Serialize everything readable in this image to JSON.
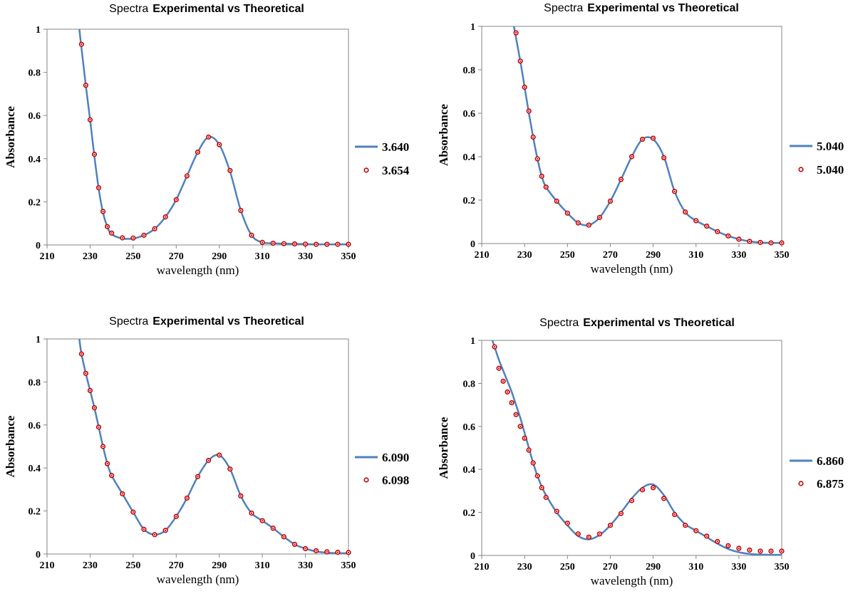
{
  "colors": {
    "line": "#4F81BD",
    "marker_edge": "#C00000",
    "marker_fill": "#C00000"
  },
  "chart_data": [
    {
      "type": "line",
      "title_prefix": "Spectra",
      "title_bold": "Experimental vs Theoretical",
      "xlabel": "wavelength (nm)",
      "ylabel": "Absorbance",
      "xlim": [
        210,
        350
      ],
      "ylim": [
        0,
        1
      ],
      "xticks": [
        "210",
        "230",
        "250",
        "270",
        "290",
        "310",
        "330",
        "350"
      ],
      "yticks": [
        "0",
        "0.2",
        "0.4",
        "0.6",
        "0.8",
        "1"
      ],
      "legend_position": "right",
      "series": [
        {
          "name": "3.640",
          "kind": "line",
          "x": [
            225,
            228,
            230,
            232,
            234,
            236,
            238,
            240,
            245,
            250,
            255,
            260,
            265,
            270,
            275,
            280,
            285,
            290,
            295,
            300,
            305,
            310,
            315,
            320,
            325,
            330,
            335,
            340,
            345,
            350
          ],
          "y": [
            1.0,
            0.74,
            0.58,
            0.41,
            0.26,
            0.15,
            0.085,
            0.05,
            0.03,
            0.03,
            0.045,
            0.075,
            0.13,
            0.21,
            0.32,
            0.43,
            0.5,
            0.465,
            0.34,
            0.16,
            0.045,
            0.012,
            0.008,
            0.006,
            0.005,
            0.004,
            0.003,
            0.003,
            0.003,
            0.003
          ]
        },
        {
          "name": "3.654",
          "kind": "scatter",
          "x": [
            226,
            228,
            230,
            232,
            234,
            236,
            238,
            240,
            245,
            250,
            255,
            260,
            265,
            270,
            275,
            280,
            285,
            290,
            295,
            300,
            305,
            310,
            315,
            320,
            325,
            330,
            335,
            340,
            345,
            350
          ],
          "y": [
            0.93,
            0.74,
            0.58,
            0.42,
            0.265,
            0.155,
            0.085,
            0.055,
            0.033,
            0.032,
            0.045,
            0.075,
            0.13,
            0.21,
            0.32,
            0.43,
            0.5,
            0.465,
            0.345,
            0.16,
            0.045,
            0.012,
            0.008,
            0.006,
            0.005,
            0.004,
            0.003,
            0.003,
            0.003,
            0.003
          ]
        }
      ]
    },
    {
      "type": "line",
      "title_prefix": "Spectra",
      "title_bold": "Experimental vs Theoretical",
      "xlabel": "wavelength (nm)",
      "ylabel": "Absorbance",
      "xlim": [
        210,
        350
      ],
      "ylim": [
        0,
        1
      ],
      "xticks": [
        "210",
        "230",
        "250",
        "270",
        "290",
        "310",
        "330",
        "350"
      ],
      "yticks": [
        "0",
        "0.2",
        "0.4",
        "0.6",
        "0.8",
        "1"
      ],
      "legend_position": "right",
      "series": [
        {
          "name": "5.040",
          "kind": "line",
          "x": [
            225,
            228,
            230,
            232,
            234,
            236,
            238,
            240,
            245,
            250,
            255,
            260,
            265,
            270,
            275,
            280,
            285,
            290,
            295,
            300,
            305,
            310,
            315,
            320,
            325,
            330,
            335,
            340,
            345,
            350
          ],
          "y": [
            1.0,
            0.84,
            0.72,
            0.6,
            0.49,
            0.39,
            0.31,
            0.26,
            0.195,
            0.14,
            0.095,
            0.085,
            0.12,
            0.195,
            0.295,
            0.4,
            0.48,
            0.48,
            0.4,
            0.24,
            0.145,
            0.105,
            0.08,
            0.055,
            0.035,
            0.02,
            0.01,
            0.005,
            0.003,
            0.003
          ]
        },
        {
          "name": "5.040",
          "kind": "scatter",
          "x": [
            226,
            228,
            230,
            232,
            234,
            236,
            238,
            240,
            245,
            250,
            255,
            260,
            265,
            270,
            275,
            280,
            285,
            290,
            295,
            300,
            305,
            310,
            315,
            320,
            325,
            330,
            335,
            340,
            345,
            350
          ],
          "y": [
            0.97,
            0.84,
            0.72,
            0.61,
            0.49,
            0.39,
            0.31,
            0.26,
            0.195,
            0.14,
            0.095,
            0.085,
            0.12,
            0.195,
            0.295,
            0.4,
            0.48,
            0.485,
            0.395,
            0.24,
            0.145,
            0.105,
            0.08,
            0.055,
            0.035,
            0.02,
            0.01,
            0.005,
            0.003,
            0.003
          ]
        }
      ]
    },
    {
      "type": "line",
      "title_prefix": "Spectra",
      "title_bold": "Experimental vs Theoretical",
      "xlabel": "wavelength (nm)",
      "ylabel": "Absorbance",
      "xlim": [
        210,
        350
      ],
      "ylim": [
        0,
        1
      ],
      "xticks": [
        "210",
        "230",
        "250",
        "270",
        "290",
        "310",
        "330",
        "350"
      ],
      "yticks": [
        "0",
        "0.2",
        "0.4",
        "0.6",
        "0.8",
        "1"
      ],
      "legend_position": "right",
      "series": [
        {
          "name": "6.090",
          "kind": "line",
          "x": [
            225,
            226,
            228,
            230,
            232,
            234,
            236,
            238,
            240,
            245,
            250,
            255,
            260,
            265,
            270,
            275,
            280,
            285,
            290,
            295,
            300,
            305,
            310,
            315,
            320,
            325,
            330,
            335,
            340,
            345,
            350
          ],
          "y": [
            1.0,
            0.93,
            0.84,
            0.76,
            0.68,
            0.59,
            0.5,
            0.42,
            0.365,
            0.28,
            0.195,
            0.115,
            0.09,
            0.11,
            0.175,
            0.26,
            0.36,
            0.435,
            0.46,
            0.395,
            0.27,
            0.19,
            0.155,
            0.12,
            0.08,
            0.045,
            0.025,
            0.012,
            0.006,
            0.004,
            0.003
          ]
        },
        {
          "name": "6.098",
          "kind": "scatter",
          "x": [
            226,
            228,
            230,
            232,
            234,
            236,
            238,
            240,
            245,
            250,
            255,
            260,
            265,
            270,
            275,
            280,
            285,
            290,
            295,
            300,
            305,
            310,
            315,
            320,
            325,
            330,
            335,
            340,
            345,
            350
          ],
          "y": [
            0.93,
            0.84,
            0.76,
            0.68,
            0.59,
            0.5,
            0.42,
            0.365,
            0.28,
            0.195,
            0.115,
            0.09,
            0.11,
            0.175,
            0.26,
            0.36,
            0.435,
            0.46,
            0.395,
            0.27,
            0.19,
            0.155,
            0.12,
            0.08,
            0.045,
            0.025,
            0.015,
            0.01,
            0.008,
            0.007
          ]
        }
      ]
    },
    {
      "type": "line",
      "title_prefix": "Spectra",
      "title_bold": "Experimental vs Theoretical",
      "xlabel": "wavelength (nm)",
      "ylabel": "Absorbance",
      "xlim": [
        210,
        350
      ],
      "ylim": [
        0,
        1
      ],
      "xticks": [
        "210",
        "230",
        "250",
        "270",
        "290",
        "310",
        "330",
        "350"
      ],
      "yticks": [
        "0",
        "0.2",
        "0.4",
        "0.6",
        "0.8",
        "1"
      ],
      "legend_position": "right",
      "series": [
        {
          "name": "6.860",
          "kind": "line",
          "x": [
            215,
            218,
            220,
            222,
            224,
            226,
            228,
            230,
            232,
            234,
            236,
            238,
            240,
            245,
            250,
            255,
            260,
            265,
            270,
            275,
            280,
            285,
            290,
            295,
            300,
            305,
            310,
            315,
            320,
            325,
            330,
            335,
            340,
            345,
            350
          ],
          "y": [
            1.0,
            0.91,
            0.86,
            0.81,
            0.76,
            0.7,
            0.64,
            0.57,
            0.5,
            0.43,
            0.37,
            0.32,
            0.28,
            0.2,
            0.14,
            0.09,
            0.075,
            0.095,
            0.14,
            0.2,
            0.265,
            0.315,
            0.33,
            0.28,
            0.2,
            0.145,
            0.115,
            0.085,
            0.055,
            0.03,
            0.015,
            0.007,
            0.004,
            0.003,
            0.003
          ]
        },
        {
          "name": "6.875",
          "kind": "scatter",
          "x": [
            216,
            218,
            220,
            222,
            224,
            226,
            228,
            230,
            232,
            234,
            236,
            238,
            240,
            245,
            250,
            255,
            260,
            265,
            270,
            275,
            280,
            285,
            290,
            295,
            300,
            305,
            310,
            315,
            320,
            325,
            330,
            335,
            340,
            345,
            350
          ],
          "y": [
            0.97,
            0.87,
            0.81,
            0.76,
            0.71,
            0.655,
            0.6,
            0.545,
            0.49,
            0.43,
            0.37,
            0.315,
            0.27,
            0.205,
            0.15,
            0.1,
            0.085,
            0.1,
            0.14,
            0.195,
            0.255,
            0.305,
            0.315,
            0.265,
            0.19,
            0.14,
            0.115,
            0.09,
            0.065,
            0.045,
            0.033,
            0.025,
            0.02,
            0.02,
            0.02
          ]
        }
      ]
    }
  ]
}
